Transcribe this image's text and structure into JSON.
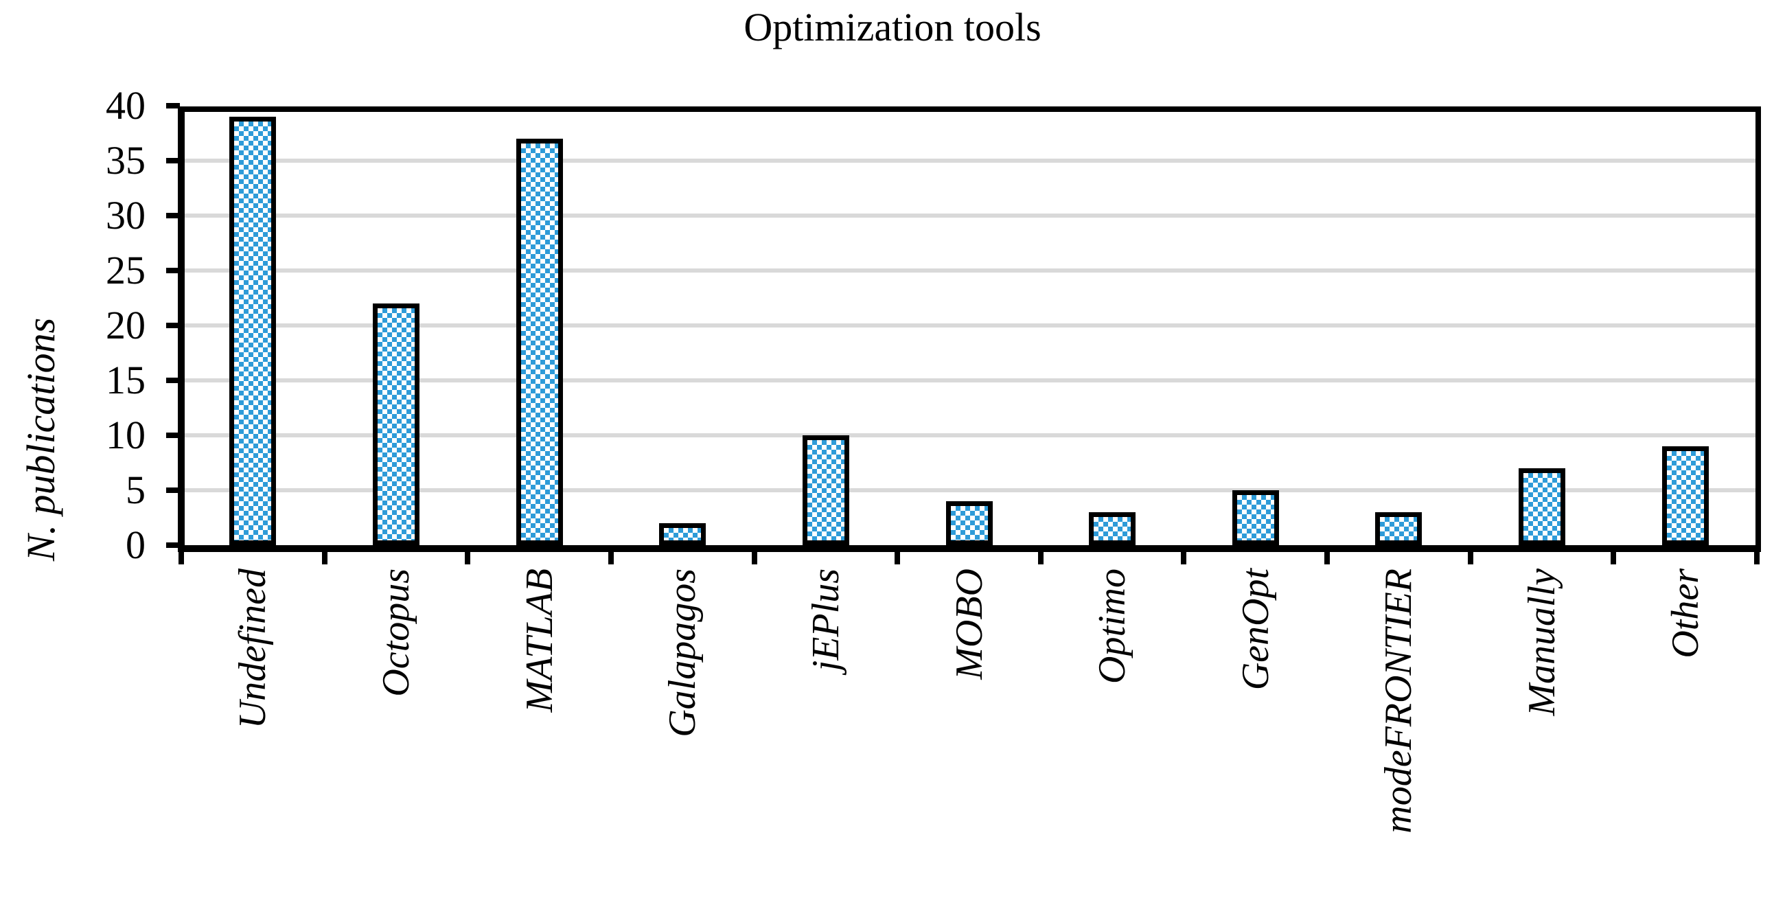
{
  "title": "Optimization tools",
  "chart_data": {
    "type": "bar",
    "title": "Optimization tools",
    "categories": [
      "Undefined",
      "Octopus",
      "MATLAB",
      "Galapagos",
      "jEPlus",
      "MOBO",
      "Optimo",
      "GenOpt",
      "modeFRONTIER",
      "Manually",
      "Other"
    ],
    "values": [
      39,
      22,
      37,
      2,
      10,
      4,
      3,
      5,
      3,
      7,
      9
    ],
    "xlabel": "",
    "ylabel": "N. publications",
    "ylim": [
      0,
      40
    ],
    "y_ticks": [
      0,
      5,
      10,
      15,
      20,
      25,
      30,
      35,
      40
    ],
    "grid": true,
    "legend": false,
    "colors": {
      "bar_fill_pattern": "checkerboard",
      "bar_blue": "#2E9BD8",
      "bar_pattern_bg": "#FFFFFF",
      "bar_border": "#000000",
      "gridline": "#D9D9D9",
      "axis": "#000000",
      "background": "#FFFFFF"
    }
  }
}
